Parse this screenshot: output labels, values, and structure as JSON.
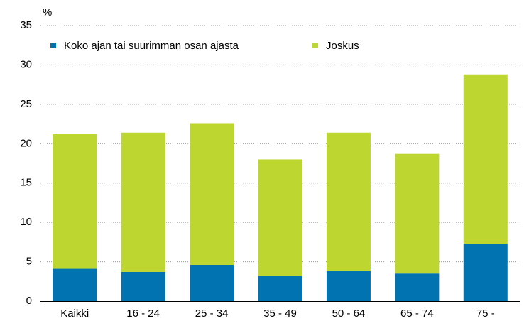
{
  "chart_data": {
    "type": "stacked_bar",
    "y_label": "%",
    "categories": [
      "Kaikki",
      "16 - 24",
      "25 - 34",
      "35 - 49",
      "50 - 64",
      "65 - 74",
      "75 -"
    ],
    "series": [
      {
        "name": "Koko ajan tai suurimman osan ajasta",
        "color": "#0073b0",
        "values": [
          4.1,
          3.7,
          4.6,
          3.2,
          3.8,
          3.5,
          7.3
        ]
      },
      {
        "name": "Joskus",
        "color": "#bed630",
        "values": [
          17.1,
          17.7,
          18.0,
          14.8,
          17.6,
          15.2,
          21.5
        ]
      }
    ],
    "ylim": [
      0,
      35
    ],
    "yticks": [
      0,
      5,
      10,
      15,
      20,
      25,
      30,
      35
    ],
    "grid": true,
    "legend": "top-left"
  }
}
